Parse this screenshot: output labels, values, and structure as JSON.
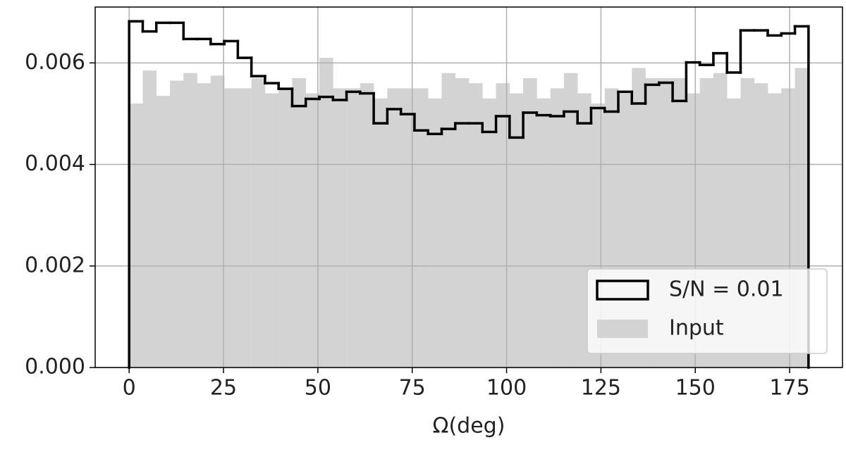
{
  "chart_data": {
    "type": "histogram",
    "bins": [
      0,
      3.6,
      7.2,
      10.8,
      14.4,
      18,
      21.6,
      25.2,
      28.8,
      32.4,
      36,
      39.6,
      43.2,
      46.8,
      50.4,
      54,
      57.6,
      61.2,
      64.8,
      68.4,
      72,
      75.6,
      79.2,
      82.8,
      86.4,
      90,
      93.6,
      97.2,
      100.8,
      104.4,
      108,
      111.6,
      115.2,
      118.8,
      122.4,
      126,
      129.6,
      133.2,
      136.8,
      140.4,
      144,
      147.6,
      151.2,
      154.8,
      158.4,
      162,
      165.6,
      169.2,
      172.8,
      176.4,
      180
    ],
    "series": [
      {
        "name": "S/N = 0.01",
        "color": "#000000",
        "style": "step",
        "values": [
          0.00682,
          0.00662,
          0.00679,
          0.00679,
          0.00647,
          0.00647,
          0.00637,
          0.00643,
          0.0061,
          0.00574,
          0.0056,
          0.00549,
          0.00515,
          0.00529,
          0.00533,
          0.00527,
          0.00543,
          0.0054,
          0.00481,
          0.00509,
          0.00499,
          0.00467,
          0.0046,
          0.0047,
          0.00481,
          0.00481,
          0.00464,
          0.00495,
          0.00453,
          0.00502,
          0.00497,
          0.00495,
          0.00504,
          0.00481,
          0.00511,
          0.00504,
          0.00543,
          0.0052,
          0.00557,
          0.00561,
          0.00525,
          0.00601,
          0.00596,
          0.00619,
          0.00581,
          0.00664,
          0.00664,
          0.00654,
          0.00658,
          0.00672
        ]
      },
      {
        "name": "Input",
        "color": "#d3d3d3",
        "style": "filled",
        "values": [
          0.0052,
          0.00585,
          0.00535,
          0.00565,
          0.0058,
          0.0056,
          0.00575,
          0.0055,
          0.0055,
          0.0057,
          0.0054,
          0.0055,
          0.0057,
          0.0054,
          0.0061,
          0.0055,
          0.0055,
          0.0056,
          0.0053,
          0.0055,
          0.0055,
          0.0055,
          0.0053,
          0.0058,
          0.0057,
          0.0056,
          0.0053,
          0.0056,
          0.0054,
          0.0057,
          0.0053,
          0.0055,
          0.0058,
          0.0054,
          0.0052,
          0.0055,
          0.0054,
          0.0059,
          0.0057,
          0.0057,
          0.0057,
          0.0054,
          0.0057,
          0.0058,
          0.0053,
          0.0057,
          0.0056,
          0.0054,
          0.0055,
          0.0059
        ]
      }
    ],
    "x_label": "Ω(deg)",
    "xlim": [
      -9,
      189
    ],
    "xticks": [
      0,
      25,
      50,
      75,
      100,
      125,
      150,
      175
    ],
    "ylim": [
      0,
      0.0071
    ],
    "yticks": [
      {
        "value": 0,
        "label": "0.000"
      },
      {
        "value": 0.002,
        "label": "0.002"
      },
      {
        "value": 0.004,
        "label": "0.004"
      },
      {
        "value": 0.006,
        "label": "0.006"
      }
    ],
    "grid": true,
    "legend": "lower right"
  }
}
